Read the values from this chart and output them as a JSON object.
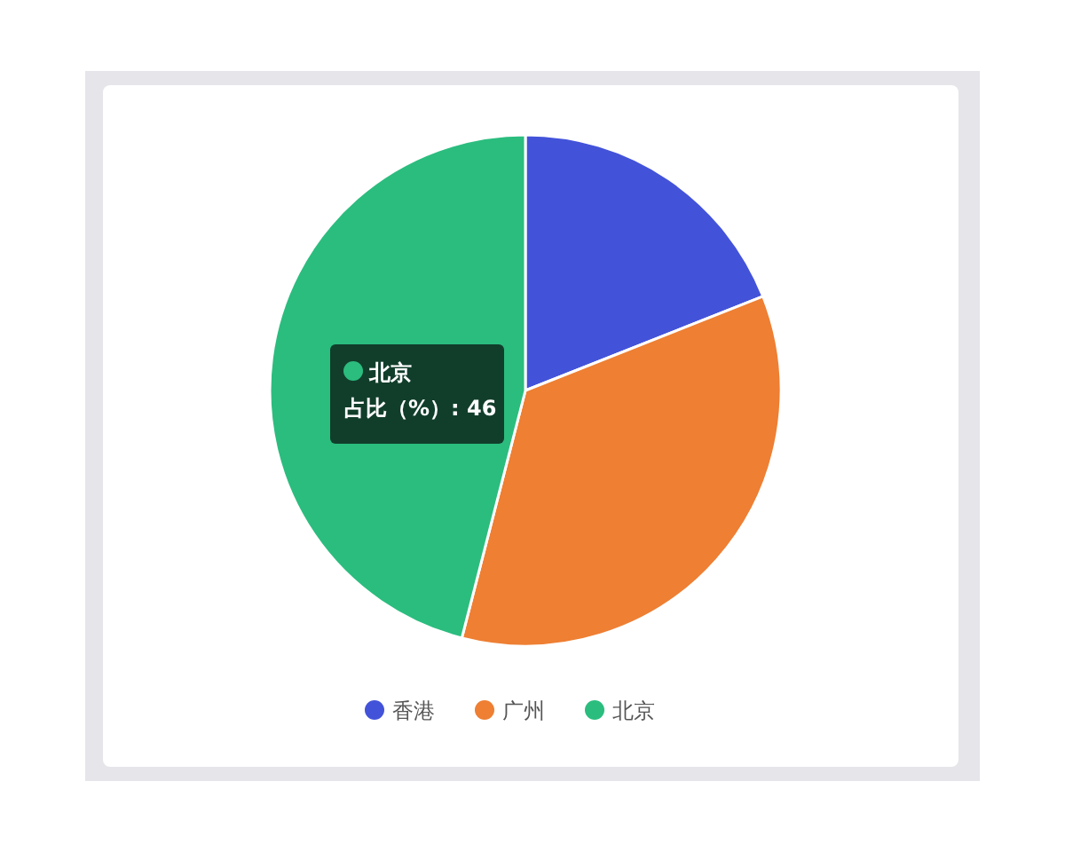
{
  "chart_data": {
    "type": "pie",
    "categories": [
      "香港",
      "广州",
      "北京"
    ],
    "values": [
      19,
      35,
      46
    ],
    "colors": [
      "#4353d9",
      "#ee7f33",
      "#2bbd7e"
    ],
    "legend": "bottom",
    "annotations": [
      "北京",
      "占比（%）: 46"
    ]
  }
}
